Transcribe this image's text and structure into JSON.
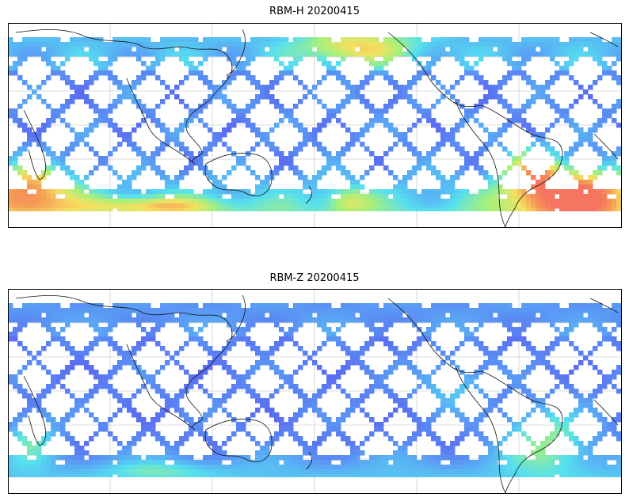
{
  "panels": [
    {
      "title": "RBM-H 20200415",
      "scale_colors": [
        "#5b5bf0",
        "#5aa0f5",
        "#55e0f0",
        "#a8f07a",
        "#f5e060",
        "#f59a55",
        "#f57560"
      ]
    },
    {
      "title": "RBM-Z 20200415",
      "scale_colors": [
        "#5b5bf0",
        "#5aa0f5",
        "#55e0f0",
        "#a8f07a",
        "#f5e060"
      ]
    }
  ],
  "colors": {
    "coast": "#111111",
    "grid": "#bdbdbd",
    "frame": "#000000",
    "background": "#ffffff"
  }
}
